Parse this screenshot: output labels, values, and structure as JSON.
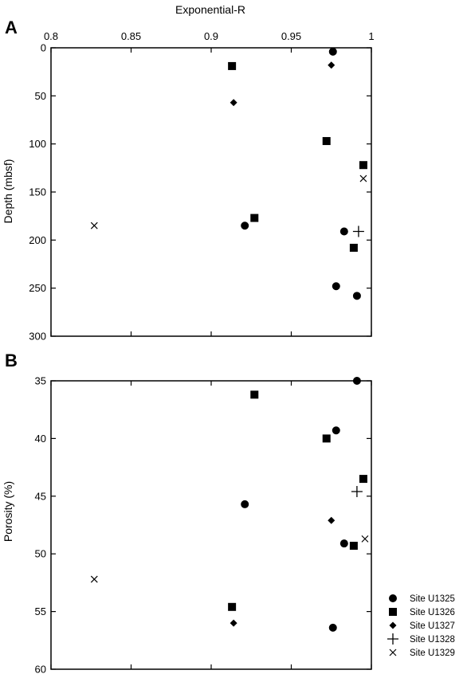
{
  "chart_data": [
    {
      "panel_label": "A",
      "type": "scatter",
      "xlabel": "Exponential-R",
      "ylabel": "Depth (mbsf)",
      "xlim": [
        0.8,
        1.0
      ],
      "ylim": [
        0,
        300
      ],
      "y_inverted": true,
      "xticks": [
        0.8,
        0.85,
        0.9,
        0.95,
        1.0
      ],
      "xtick_labels": [
        "0.8",
        "0.85",
        "0.9",
        "0.95",
        "1"
      ],
      "yticks": [
        0,
        50,
        100,
        150,
        200,
        250,
        300
      ],
      "ytick_labels": [
        "0",
        "50",
        "100",
        "150",
        "200",
        "250",
        "300"
      ],
      "series": [
        {
          "name": "Site U1325",
          "marker": "circle",
          "points": [
            [
              0.976,
              4
            ],
            [
              0.921,
              185
            ],
            [
              0.983,
              191
            ],
            [
              0.978,
              248
            ],
            [
              0.991,
              258
            ]
          ]
        },
        {
          "name": "Site U1326",
          "marker": "square",
          "points": [
            [
              0.913,
              19
            ],
            [
              0.972,
              97
            ],
            [
              0.995,
              122
            ],
            [
              0.927,
              177
            ],
            [
              0.989,
              208
            ]
          ]
        },
        {
          "name": "Site U1327",
          "marker": "diamond",
          "points": [
            [
              0.975,
              18
            ],
            [
              0.914,
              57
            ]
          ]
        },
        {
          "name": "Site U1328",
          "marker": "plus",
          "points": [
            [
              0.992,
              191
            ]
          ]
        },
        {
          "name": "Site U1329",
          "marker": "x",
          "points": [
            [
              0.995,
              136
            ],
            [
              0.827,
              185
            ]
          ]
        }
      ]
    },
    {
      "panel_label": "B",
      "type": "scatter",
      "xlabel": "",
      "ylabel": "Porosity (%)",
      "xlim": [
        0.8,
        1.0
      ],
      "ylim": [
        35,
        60
      ],
      "y_inverted": true,
      "yticks": [
        35,
        40,
        45,
        50,
        55,
        60
      ],
      "ytick_labels": [
        "35",
        "40",
        "45",
        "50",
        "55",
        "60"
      ],
      "series": [
        {
          "name": "Site U1325",
          "marker": "circle",
          "points": [
            [
              0.991,
              35.0
            ],
            [
              0.978,
              39.3
            ],
            [
              0.921,
              45.7
            ],
            [
              0.983,
              49.1
            ],
            [
              0.976,
              56.4
            ]
          ]
        },
        {
          "name": "Site U1326",
          "marker": "square",
          "points": [
            [
              0.927,
              36.2
            ],
            [
              0.972,
              40.0
            ],
            [
              0.995,
              43.5
            ],
            [
              0.989,
              49.3
            ],
            [
              0.913,
              54.6
            ]
          ]
        },
        {
          "name": "Site U1327",
          "marker": "diamond",
          "points": [
            [
              0.975,
              47.1
            ],
            [
              0.914,
              56.0
            ]
          ]
        },
        {
          "name": "Site U1328",
          "marker": "plus",
          "points": [
            [
              0.991,
              44.6
            ]
          ]
        },
        {
          "name": "Site U1329",
          "marker": "x",
          "points": [
            [
              0.996,
              48.7
            ],
            [
              0.827,
              52.2
            ]
          ]
        }
      ]
    }
  ],
  "legend": {
    "placement": "bottom-right",
    "entries": [
      {
        "name": "Site U1325",
        "marker": "circle"
      },
      {
        "name": "Site U1326",
        "marker": "square"
      },
      {
        "name": "Site U1327",
        "marker": "diamond"
      },
      {
        "name": "Site U1328",
        "marker": "plus"
      },
      {
        "name": "Site U1329",
        "marker": "x"
      }
    ]
  }
}
